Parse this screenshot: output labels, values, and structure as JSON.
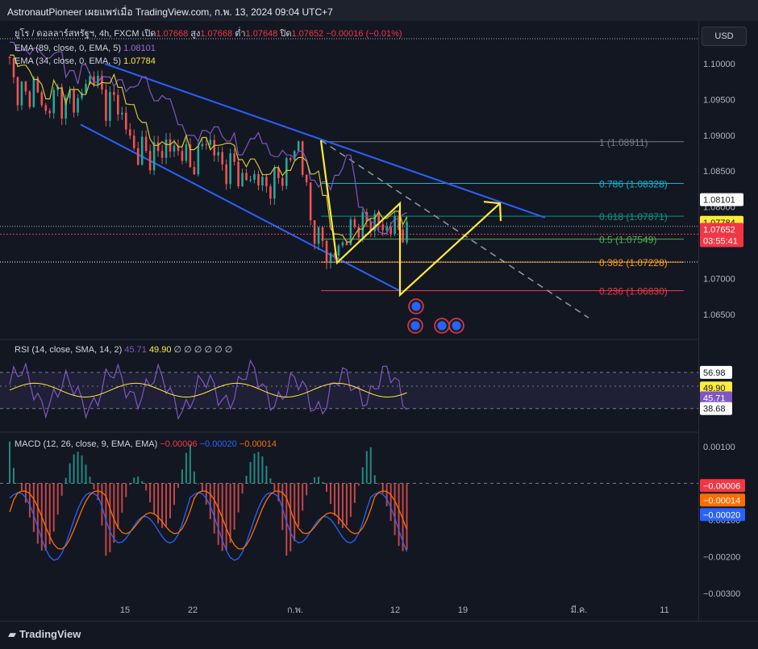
{
  "header": {
    "text": "AstronautPioneer เผยแพร่เมื่อ TradingView.com, ก.พ. 13, 2024 09:04 UTC+7"
  },
  "scale_button": "USD",
  "legend_main": {
    "symbol": "ยูโร / ดอลลาร์สหรัฐฯ, 4h, FXCM",
    "o_label": "เปิด",
    "o": "1.07668",
    "h_label": "สูง",
    "h": "1.07668",
    "l_label": "ต่ำ",
    "l": "1.07648",
    "c_label": "ปิด",
    "c": "1.07652",
    "chg": "−0.00016 (−0.01%)",
    "ema89": "EMA (89, close, 0, EMA, 5)",
    "ema89_val": "1.08101",
    "ema34": "EMA (34, close, 0, EMA, 5)",
    "ema34_val": "1.07784"
  },
  "legend_rsi": {
    "label": "RSI (14, close, SMA, 14, 2)",
    "v1": "45.71",
    "v2": "49.90",
    "tail": "∅ ∅ ∅ ∅ ∅ ∅"
  },
  "legend_macd": {
    "label": "MACD (12, 26, close, 9, EMA, EMA)",
    "v1": "−0.00006",
    "v2": "−0.00020",
    "v3": "−0.00014"
  },
  "price_axis": [
    "1.10000",
    "1.09500",
    "1.09000",
    "1.08500",
    "1.08000",
    "1.07500",
    "1.07000",
    "1.06500"
  ],
  "price_badges": [
    {
      "text": "1.08101",
      "bg": "#ffffff",
      "fg": "#131722"
    },
    {
      "text": "1.07784",
      "bg": "#ffeb3b",
      "fg": "#131722"
    },
    {
      "text": "1.07652",
      "bg": "#f23645",
      "fg": "#ffffff"
    },
    {
      "text": "03:55:41",
      "bg": "#f23645",
      "fg": "#ffffff"
    }
  ],
  "fib_levels": [
    {
      "label": "1 (1.08911)",
      "color": "#787b86"
    },
    {
      "label": "0.786 (1.08328)",
      "color": "#00bcd4"
    },
    {
      "label": "0.618 (1.07871)",
      "color": "#089981"
    },
    {
      "label": "0.5 (1.07549)",
      "color": "#4caf50"
    },
    {
      "label": "0.382 (1.07228)",
      "color": "#ff9800"
    },
    {
      "label": "0.236 (1.06830)",
      "color": "#f23645"
    }
  ],
  "rsi_axis": [
    "56.98",
    "49.90",
    "45.71",
    "38.68"
  ],
  "macd_axis": [
    "0.00100",
    "−0.00100",
    "−0.00200",
    "−0.00300"
  ],
  "macd_badges": [
    {
      "text": "−0.00006",
      "bg": "#f23645",
      "fg": "#ffffff"
    },
    {
      "text": "−0.00014",
      "bg": "#ff6d00",
      "fg": "#ffffff"
    },
    {
      "text": "−0.00020",
      "bg": "#2962ff",
      "fg": "#ffffff"
    }
  ],
  "time_axis": [
    "15",
    "22",
    "ก.พ.",
    "12",
    "19",
    "มี.ค.",
    "11"
  ],
  "footer": {
    "brand": "TradingView"
  },
  "chart_data": {
    "type": "candlestick",
    "symbol": "EURUSD",
    "timeframe": "4h",
    "ylim": [
      1.0625,
      1.1035
    ],
    "fib_values": [
      1.08911,
      1.08328,
      1.07871,
      1.07549,
      1.07228,
      1.0683
    ],
    "channel_upper": [
      [
        1.1,
        "Jan 11"
      ],
      [
        1.08911,
        "Feb 2"
      ],
      [
        1.078,
        "Feb 26"
      ]
    ],
    "channel_lower": [
      [
        1.0915,
        "Jan 11"
      ],
      [
        1.0723,
        "Feb 5"
      ],
      [
        1.068,
        "Feb 12"
      ]
    ],
    "close_series": [
      1.1,
      1.096,
      1.0965,
      1.0945,
      1.0975,
      1.095,
      1.093,
      1.095,
      1.096,
      1.0935,
      1.0955,
      1.094,
      1.096,
      1.0975,
      1.0985,
      1.0965,
      1.094,
      1.0955,
      1.094,
      1.092,
      1.0895,
      1.087,
      1.0885,
      1.0865,
      1.088,
      1.087,
      1.089,
      1.088,
      1.0875,
      1.0885,
      1.085,
      1.087,
      1.0885,
      1.0895,
      1.088,
      1.086,
      1.085,
      1.0865,
      1.0845,
      1.0835,
      1.084,
      1.0845,
      1.083,
      1.0825,
      1.084,
      1.0835,
      1.086,
      1.087,
      1.089,
      1.084,
      1.078,
      1.076,
      1.075,
      1.0725,
      1.0735,
      1.0745,
      1.076,
      1.077,
      1.0775,
      1.078,
      1.0775,
      1.079,
      1.076,
      1.078,
      1.077,
      1.0768,
      1.07652
    ],
    "ema34_last": 1.07784,
    "ema89_last": 1.08101,
    "last": 1.07652,
    "rsi": {
      "ylim": [
        30,
        70
      ],
      "levels": [
        56.98,
        38.68
      ],
      "last_rsi": 45.71,
      "last_sma": 49.9
    },
    "macd": {
      "ylim": [
        -0.0032,
        0.0012
      ],
      "macd_last": -0.0002,
      "signal_last": -0.00014,
      "hist_last": -6e-05
    }
  }
}
